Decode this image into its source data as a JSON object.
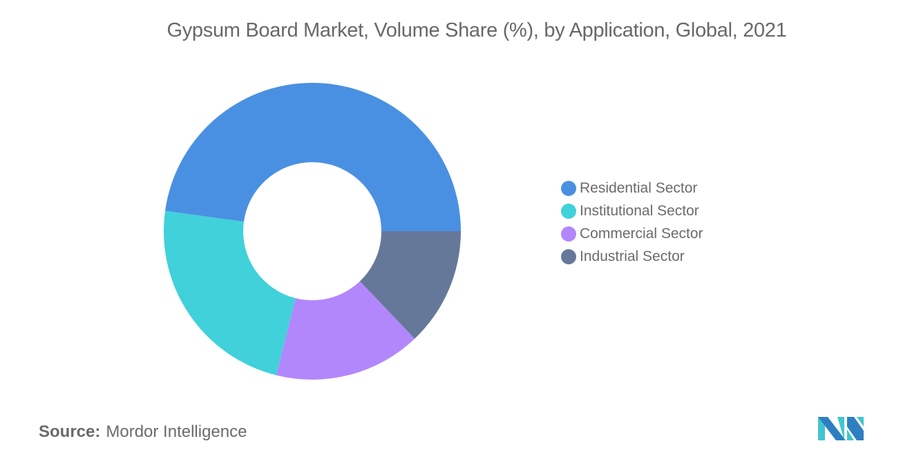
{
  "title": "Gypsum Board Market, Volume Share (%), by Application, Global, 2021",
  "source": {
    "label": "Source:",
    "value": "Mordor Intelligence"
  },
  "legend": [
    {
      "label": "Residential Sector",
      "color": "#4a90e2"
    },
    {
      "label": "Institutional Sector",
      "color": "#41d1da"
    },
    {
      "label": "Commercial Sector",
      "color": "#b287fc"
    },
    {
      "label": "Industrial Sector",
      "color": "#66789a"
    }
  ],
  "logo": {
    "name": "mordor-intelligence-logo",
    "colors": [
      "#2e7fc1",
      "#41c6d0"
    ]
  },
  "chart_data": {
    "type": "pie",
    "variant": "donut",
    "title": "Gypsum Board Market, Volume Share (%), by Application, Global, 2021",
    "categories": [
      "Residential Sector",
      "Institutional Sector",
      "Commercial Sector",
      "Industrial Sector"
    ],
    "values": [
      47.8,
      23.3,
      16.0,
      12.9
    ],
    "colors": [
      "#4a90e2",
      "#41d1da",
      "#b287fc",
      "#66789a"
    ],
    "unit": "%",
    "data_labels": false,
    "legend_position": "right",
    "start_angle_deg": 0,
    "direction": "counterclockwise-from-3-oclock-for-first-series",
    "inner_radius_ratio": 0.46
  }
}
